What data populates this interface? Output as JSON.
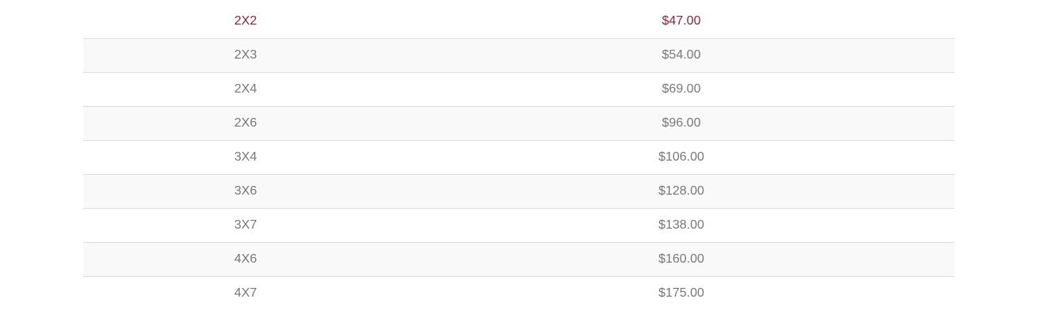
{
  "table": {
    "rows": [
      {
        "size": "2X2",
        "price": "$47.00",
        "highlighted": true
      },
      {
        "size": "2X3",
        "price": "$54.00"
      },
      {
        "size": "2X4",
        "price": "$69.00"
      },
      {
        "size": "2X6",
        "price": "$96.00"
      },
      {
        "size": "3X4",
        "price": "$106.00"
      },
      {
        "size": "3X6",
        "price": "$128.00"
      },
      {
        "size": "3X7",
        "price": "$138.00"
      },
      {
        "size": "4X6",
        "price": "$160.00"
      },
      {
        "size": "4X7",
        "price": "$175.00"
      }
    ],
    "colors": {
      "highlight_text": "#7d2a38",
      "text": "#777777",
      "stripe": "#f9f9f9",
      "border": "#dddddd"
    }
  }
}
